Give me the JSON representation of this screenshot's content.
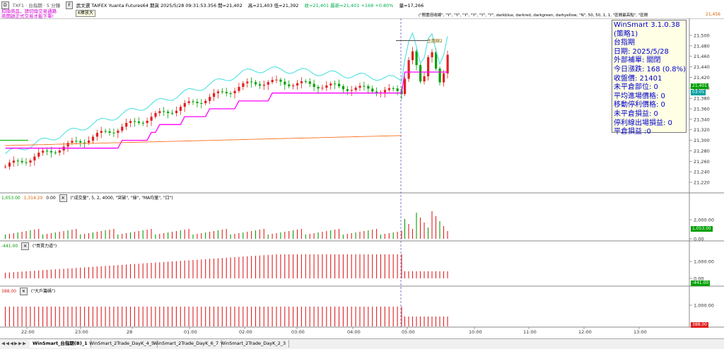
{
  "toolbar": {
    "btn1": "D",
    "symbol": "TXF1 · 台指期 · 5 分鐘",
    "btn2": "F",
    "quote_open_prefix": "武文選  TAIFEX  Yuanta Futures64  期貨  2025/5/28  09:31:53.356  開=21,402",
    "quote_high": "高=21,403  低=21,392",
    "quote_green": "收=21,401  最新=21,401  +168  +0.80%",
    "quote_vol": "量=17,266",
    "params": "(\"閒置倍收線\", \"Y\", \"Y\", \"Y\", \"Y\", \"Y\", \"Y\", darkblue, darkred, darkgreen, darkyellow, \"N\", 50, 50, 1, 1, \"區間最高點\", \"區間",
    "far_right": "21,456"
  },
  "warn": {
    "line1": "扣換商品，請切換交易通路",
    "line2": "商開啟正式交易才能下單!"
  },
  "tooltip": "K棒放大",
  "info": {
    "lines": [
      "WinSmart 3.1.0.38",
      "(策略1)",
      "台指期",
      "日期: 2025/5/28",
      "外部補單: 關閉",
      "今日漲跌: 168 (0.8%)",
      "收盤價: 21401",
      "未平倉部位: 0",
      "平均進場價格: 0",
      "移動停利價格: 0",
      "未平倉損益: 0",
      "停利線出場損益: 0",
      "平倉損益 :0"
    ]
  },
  "main_annot": "主趨線2",
  "price_axis": [
    "21,500",
    "21,480",
    "21,460",
    "21,440",
    "21,420",
    "21,400",
    "21,380",
    "21,360",
    "21,340",
    "21,320",
    "21,300",
    "21,280",
    "21,260",
    "21,240",
    "21,220"
  ],
  "price_badges": {
    "last": "21,401",
    "other": "03:05"
  },
  "vol_pane": {
    "val1": "1,053.00",
    "val2": "1,314.20",
    "val3": "0.00",
    "title": "(\"成交量\", 5, 2, 4000, \"突破\", \"綠\", \"MA均量\", \"口\")",
    "axis": [
      "2,000.00",
      "0.00"
    ],
    "badge": "1,053.00"
  },
  "pow_pane": {
    "val": "-441.00",
    "title": "(\"買賣力道\")",
    "axis": [
      "1,000.00",
      "0.00"
    ],
    "badge": "-441.00"
  },
  "big_pane": {
    "val": "388.00",
    "title": "(\"大戶籌碼\")",
    "axis": [
      "1,000.00"
    ],
    "badge": "388.00"
  },
  "time_axis": [
    "22:00",
    "23:00",
    "28",
    "01:00",
    "02:00",
    "03:00",
    "04:00",
    "05:00",
    "10:00",
    "11:00",
    "12:00",
    "13:00"
  ],
  "tabs": [
    "WinSmart_台指期(B)_1",
    "WinSmart_2Trade_DayK_4_5",
    "WinSmart_2Trade_DayK_6_7",
    "WinSmart_2Trade_DayK_2_3"
  ],
  "colors": {
    "up": "#e02020",
    "down": "#00a000",
    "cyan": "#50e0e0",
    "magenta": "#ff00ff",
    "orange": "#ff7020"
  }
}
